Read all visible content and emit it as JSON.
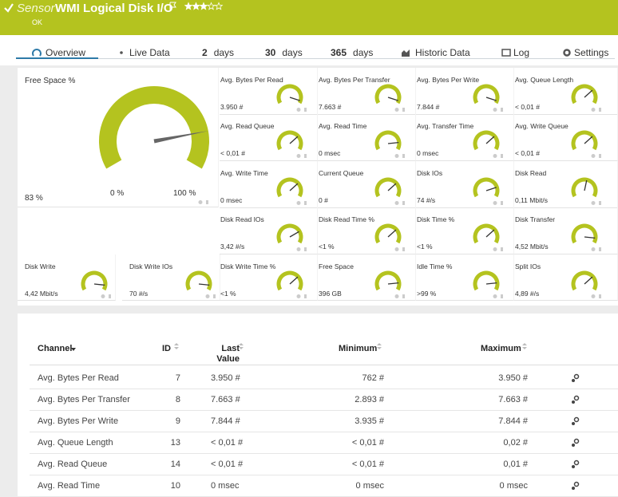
{
  "header": {
    "prefix": "Sensor",
    "title": "WMI Logical Disk I/O",
    "status": "OK",
    "rating": 3,
    "rating_max": 5
  },
  "tabs": [
    {
      "label": "Overview"
    },
    {
      "label": "Live Data"
    },
    {
      "num": "2",
      "label": "days"
    },
    {
      "num": "30",
      "label": "days"
    },
    {
      "num": "365",
      "label": "days"
    },
    {
      "label": "Historic Data"
    },
    {
      "label": "Log"
    },
    {
      "label": "Settings"
    }
  ],
  "gauges": {
    "main": {
      "label": "Free Space %",
      "value": "83 %",
      "level": 83,
      "min_label": "0 %",
      "max_label": "100 %"
    },
    "small": [
      {
        "label": "Avg. Bytes Per Read",
        "value": "3.950 #",
        "level": 95
      },
      {
        "label": "Avg. Bytes Per Transfer",
        "value": "7.663 #",
        "level": 95
      },
      {
        "label": "Avg. Bytes Per Write",
        "value": "7.844 #",
        "level": 95
      },
      {
        "label": "Avg. Queue Length",
        "value": "< 0,01 #",
        "level": 70
      },
      {
        "label": "Avg. Read Queue",
        "value": "< 0,01 #",
        "level": 70
      },
      {
        "label": "Avg. Read Time",
        "value": "0 msec",
        "level": 85
      },
      {
        "label": "Avg. Transfer Time",
        "value": "0 msec",
        "level": 70
      },
      {
        "label": "Avg. Write Queue",
        "value": "< 0,01 #",
        "level": 70
      },
      {
        "label": "Avg. Write Time",
        "value": "0 msec",
        "level": 70
      },
      {
        "label": "Current Queue",
        "value": "0 #",
        "level": 70
      },
      {
        "label": "Disk IOs",
        "value": "74 #/s",
        "level": 80
      },
      {
        "label": "Disk Read",
        "value": "0,11 Mbit/s",
        "level": 55
      },
      {
        "label": "Disk Read IOs",
        "value": "3,42 #/s",
        "level": 75
      },
      {
        "label": "Disk Read Time %",
        "value": "<1 %",
        "level": 70
      },
      {
        "label": "Disk Time %",
        "value": "<1 %",
        "level": 70
      },
      {
        "label": "Disk Transfer",
        "value": "4,52 Mbit/s",
        "level": 90
      },
      {
        "label": "Disk Write",
        "value": "4,42 Mbit/s",
        "level": 90
      },
      {
        "label": "Disk Write IOs",
        "value": "70 #/s",
        "level": 90
      },
      {
        "label": "Disk Write Time %",
        "value": "<1 %",
        "level": 70
      },
      {
        "label": "Free Space",
        "value": "396 GB",
        "level": 85
      },
      {
        "label": "Idle Time %",
        "value": ">99 %",
        "level": 85
      },
      {
        "label": "Split IOs",
        "value": "4,89 #/s",
        "level": 70
      }
    ]
  },
  "table": {
    "headers": [
      "Channel",
      "ID",
      "Last Value",
      "Minimum",
      "Maximum"
    ],
    "rows": [
      [
        "Avg. Bytes Per Read",
        "7",
        "3.950 #",
        "762 #",
        "3.950 #"
      ],
      [
        "Avg. Bytes Per Transfer",
        "8",
        "7.663 #",
        "2.893 #",
        "7.663 #"
      ],
      [
        "Avg. Bytes Per Write",
        "9",
        "7.844 #",
        "3.935 #",
        "7.844 #"
      ],
      [
        "Avg. Queue Length",
        "13",
        "< 0,01 #",
        "< 0,01 #",
        "0,02 #"
      ],
      [
        "Avg. Read Queue",
        "14",
        "< 0,01 #",
        "< 0,01 #",
        "0,01 #"
      ],
      [
        "Avg. Read Time",
        "10",
        "0 msec",
        "0 msec",
        "0 msec"
      ]
    ]
  }
}
